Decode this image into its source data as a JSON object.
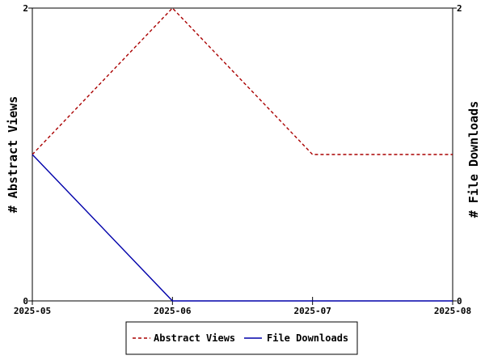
{
  "chart_data": {
    "type": "line",
    "x": [
      "2025-05",
      "2025-06",
      "2025-07",
      "2025-08"
    ],
    "series": [
      {
        "name": "Abstract Views",
        "values": [
          1,
          2,
          1,
          1
        ],
        "color": "#aa0000",
        "dash": "dashed",
        "axis": "left"
      },
      {
        "name": "File Downloads",
        "values": [
          1,
          0,
          0,
          0
        ],
        "color": "#0000aa",
        "dash": "solid",
        "axis": "right"
      }
    ],
    "ylabel_left": "# Abstract Views",
    "ylabel_right": "# File Downloads",
    "ylim_left": [
      0,
      2
    ],
    "ylim_right": [
      0,
      2
    ],
    "yticks_left": [
      "0",
      "2"
    ],
    "yticks_right": [
      "0",
      "2"
    ],
    "grid": false,
    "legend_position": "bottom-center"
  }
}
